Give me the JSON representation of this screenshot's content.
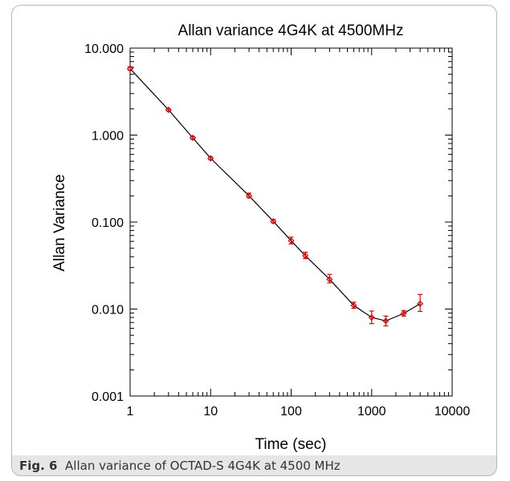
{
  "caption": {
    "fig_label": "Fig. 6",
    "text": "Allan variance of OCTAD-S 4G4K at 4500 MHz"
  },
  "chart_data": {
    "type": "line",
    "title": "Allan variance 4G4K at 4500MHz",
    "xlabel": "Time (sec)",
    "ylabel": "Allan Variance",
    "xscale": "log",
    "yscale": "log",
    "xlim": [
      1,
      10000
    ],
    "ylim": [
      0.001,
      10
    ],
    "x_ticks": [
      {
        "value": 1,
        "label": "1"
      },
      {
        "value": 10,
        "label": "10"
      },
      {
        "value": 100,
        "label": "100"
      },
      {
        "value": 1000,
        "label": "1000"
      },
      {
        "value": 10000,
        "label": "10000"
      }
    ],
    "y_ticks": [
      {
        "value": 10,
        "label": "10.000"
      },
      {
        "value": 1,
        "label": "1.000"
      },
      {
        "value": 0.1,
        "label": "0.100"
      },
      {
        "value": 0.01,
        "label": "0.010"
      },
      {
        "value": 0.001,
        "label": "0.001"
      }
    ],
    "grid": false,
    "line_color": "#000000",
    "marker_color": "#e00000",
    "series": [
      {
        "x": [
          1,
          3,
          6,
          10,
          30,
          60,
          100,
          150,
          300,
          600,
          1000,
          1500,
          2500,
          4000
        ],
        "y": [
          5.8,
          1.95,
          0.93,
          0.54,
          0.2,
          0.102,
          0.061,
          0.041,
          0.022,
          0.011,
          0.008,
          0.0073,
          0.0089,
          0.0115
        ],
        "err_low": [
          5.55,
          1.9,
          0.9,
          0.52,
          0.19,
          0.098,
          0.056,
          0.038,
          0.02,
          0.0102,
          0.0068,
          0.0064,
          0.0083,
          0.0094
        ],
        "err_high": [
          6.1,
          2.0,
          0.96,
          0.56,
          0.215,
          0.107,
          0.067,
          0.045,
          0.025,
          0.012,
          0.0095,
          0.0083,
          0.0096,
          0.0147
        ]
      }
    ]
  }
}
